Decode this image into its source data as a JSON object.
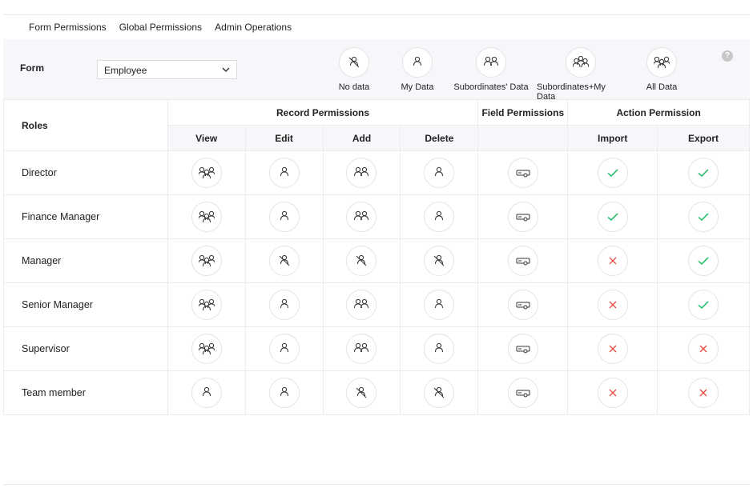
{
  "tabs": [
    "Form Permissions",
    "Global Permissions",
    "Admin Operations"
  ],
  "filter": {
    "form_label": "Form",
    "form_value": "Employee",
    "legend": [
      {
        "icon": "no-data",
        "label": "No data"
      },
      {
        "icon": "my-data",
        "label": "My Data"
      },
      {
        "icon": "subordinates-data",
        "label": "Subordinates' Data"
      },
      {
        "icon": "subordinates-my-data",
        "label": "Subordinates+My Data"
      },
      {
        "icon": "all-data",
        "label": "All Data"
      }
    ],
    "help": "?"
  },
  "table": {
    "roles_header": "Roles",
    "groups": {
      "record": "Record Permissions",
      "field": "Field Permissions",
      "action": "Action Permission"
    },
    "columns": {
      "view": "View",
      "edit": "Edit",
      "add": "Add",
      "delete": "Delete",
      "import": "Import",
      "export": "Export"
    },
    "rows": [
      {
        "role": "Director",
        "view": "all-data",
        "edit": "my-data",
        "add": "subordinates-data",
        "delete": "my-data",
        "field": "field-toggle",
        "import": "check",
        "export": "check"
      },
      {
        "role": "Finance Manager",
        "view": "all-data",
        "edit": "my-data",
        "add": "subordinates-data",
        "delete": "my-data",
        "field": "field-toggle",
        "import": "check",
        "export": "check"
      },
      {
        "role": "Manager",
        "view": "all-data",
        "edit": "no-data",
        "add": "no-data",
        "delete": "no-data",
        "field": "field-toggle",
        "import": "cross",
        "export": "check"
      },
      {
        "role": "Senior Manager",
        "view": "all-data",
        "edit": "my-data",
        "add": "subordinates-data",
        "delete": "my-data",
        "field": "field-toggle",
        "import": "cross",
        "export": "check"
      },
      {
        "role": "Supervisor",
        "view": "all-data",
        "edit": "my-data",
        "add": "subordinates-data",
        "delete": "my-data",
        "field": "field-toggle",
        "import": "cross",
        "export": "cross"
      },
      {
        "role": "Team member",
        "view": "my-data",
        "edit": "my-data",
        "add": "no-data",
        "delete": "no-data",
        "field": "field-toggle",
        "import": "cross",
        "export": "cross"
      }
    ]
  },
  "colors": {
    "check": "#2fbf71",
    "cross": "#e8453c",
    "icon": "#333333"
  }
}
